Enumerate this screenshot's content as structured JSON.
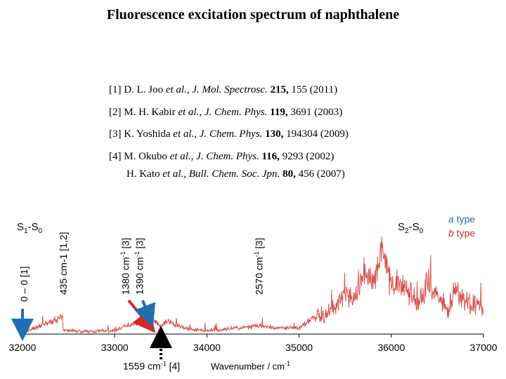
{
  "title": "Fluorescence excitation spectrum of naphthalene",
  "references": [
    {
      "num": "[1]",
      "authors": "D. L. Joo",
      "etal": "et al.",
      "journal": "J. Mol. Spectrosc.",
      "volume": "215,",
      "rest": "155 (2011)"
    },
    {
      "num": "[2]",
      "authors": "M. H. Kabir",
      "etal": "et al.",
      "journal": "J. Chem. Phys.",
      "volume": "119,",
      "rest": "3691 (2003)"
    },
    {
      "num": "[3]",
      "authors": "K. Yoshida",
      "etal": "et al.",
      "journal": "J. Chem. Phys.",
      "volume": "130,",
      "rest": "194304 (2009)"
    },
    {
      "num": "[4]",
      "authors": "M. Okubo",
      "etal": "et al.",
      "journal": "J. Chem. Phys.",
      "volume": "116,",
      "rest": "9293 (2002)"
    },
    {
      "num": "",
      "authors": "H. Kato",
      "etal": "et al.",
      "journal": "Bull. Chem. Soc. Jpn.",
      "volume": "80,",
      "rest": "456 (2007)"
    }
  ],
  "labels": {
    "s1s0": {
      "main": "S",
      "sub1": "1",
      "mid": "-S",
      "sub2": "0"
    },
    "s2s0": {
      "main": "S",
      "sub1": "2",
      "mid": "-S",
      "sub2": "0"
    },
    "origin": "0 – 0 [1]",
    "band435": "435 cm-1 [1,2]",
    "band1380": {
      "pre": "1380 cm",
      "sup": "-1",
      "post": " [3]"
    },
    "band1390": {
      "pre": "1390 cm",
      "sup": "-1",
      "post": " [3]"
    },
    "band2570": {
      "pre": "2570 cm",
      "sup": "-1",
      "post": " [3]"
    },
    "band1559": {
      "pre": "1559 cm",
      "sup": "-1",
      "post": " [4]"
    }
  },
  "legend": {
    "a_type": {
      "italic": "a",
      "rest": " type",
      "color": "#1f6fb5"
    },
    "b_type": {
      "italic": "b",
      "rest": " type",
      "color": "#d12a2a"
    }
  },
  "colors": {
    "spectrum": "#d9534f",
    "arrow_blue": "#1f6fb5",
    "arrow_red": "#d12a2a",
    "axis": "#000000"
  },
  "chart_data": {
    "type": "line",
    "title": "Fluorescence excitation spectrum of naphthalene",
    "xlabel": "Wavenumber / cm-1",
    "ylabel": "",
    "xlim": [
      32000,
      37000
    ],
    "ylim": [
      0,
      1
    ],
    "xticks": [
      32000,
      33000,
      34000,
      35000,
      36000,
      37000
    ],
    "grid": false,
    "series": [
      {
        "x": [
          32000,
          32435,
          32440,
          32700,
          33000,
          33150,
          33380,
          33390,
          33500,
          33559,
          33800,
          34000,
          34300,
          34570,
          34800,
          35000,
          35100,
          35300,
          35500,
          35600,
          35700,
          35800,
          35900,
          36000,
          36100,
          36300,
          36400,
          36600,
          36700,
          36800,
          36900,
          37000
        ],
        "y": [
          0.01,
          0.15,
          0.03,
          0.02,
          0.03,
          0.08,
          0.14,
          0.16,
          0.06,
          0.12,
          0.04,
          0.03,
          0.05,
          0.07,
          0.05,
          0.06,
          0.12,
          0.18,
          0.34,
          0.28,
          0.55,
          0.48,
          0.78,
          0.42,
          0.46,
          0.28,
          0.45,
          0.22,
          0.38,
          0.3,
          0.26,
          0.22
        ]
      }
    ],
    "annotations": [
      {
        "x": 32000,
        "text": "0 – 0 [1]",
        "arrow": "blue"
      },
      {
        "x": 32435,
        "text": "435 cm-1 [1,2]"
      },
      {
        "x": 33380,
        "text": "1380 cm-1 [3]",
        "arrow": "red"
      },
      {
        "x": 33390,
        "text": "1390 cm-1 [3]",
        "arrow": "blue"
      },
      {
        "x": 33559,
        "text": "1559 cm-1 [4]",
        "arrow": "dotted"
      },
      {
        "x": 34570,
        "text": "2570 cm-1 [3]"
      }
    ]
  }
}
